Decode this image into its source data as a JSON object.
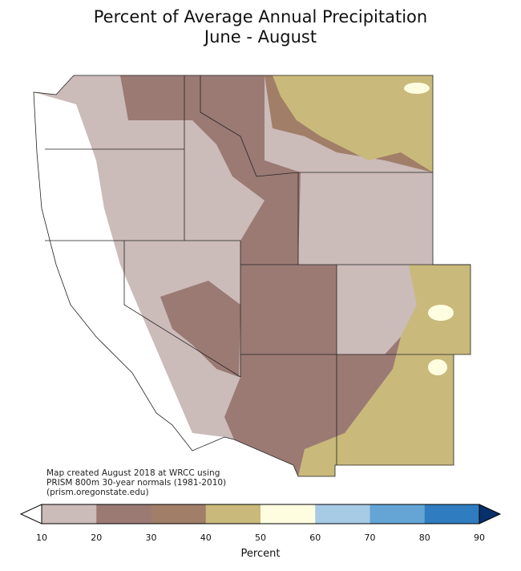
{
  "title": {
    "line1": "Percent of Average Annual Precipitation",
    "line2": "June - August"
  },
  "credit": {
    "line1": "Map created August 2018 at WRCC using",
    "line2": "PRISM 800m 30-year normals (1981-2010)",
    "line3": "(prism.oregonstate.edu)"
  },
  "legend": {
    "label": "Percent",
    "ticks": [
      "10",
      "20",
      "30",
      "40",
      "50",
      "60",
      "70",
      "80",
      "90"
    ],
    "under_color": "#ffffff",
    "over_color": "#08306b",
    "bins": [
      {
        "range": "10-20",
        "color": "#cbbbb9"
      },
      {
        "range": "20-30",
        "color": "#9b7a74"
      },
      {
        "range": "30-40",
        "color": "#a07e68"
      },
      {
        "range": "40-50",
        "color": "#c9b97b"
      },
      {
        "range": "50-60",
        "color": "#fffde0"
      },
      {
        "range": "60-70",
        "color": "#a7cbe5"
      },
      {
        "range": "70-80",
        "color": "#64a5d6"
      },
      {
        "range": "80-90",
        "color": "#2f7cc0"
      }
    ]
  },
  "states": [
    "WA",
    "OR",
    "CA",
    "ID",
    "NV",
    "MT",
    "WY",
    "UT",
    "AZ",
    "CO",
    "NM"
  ]
}
